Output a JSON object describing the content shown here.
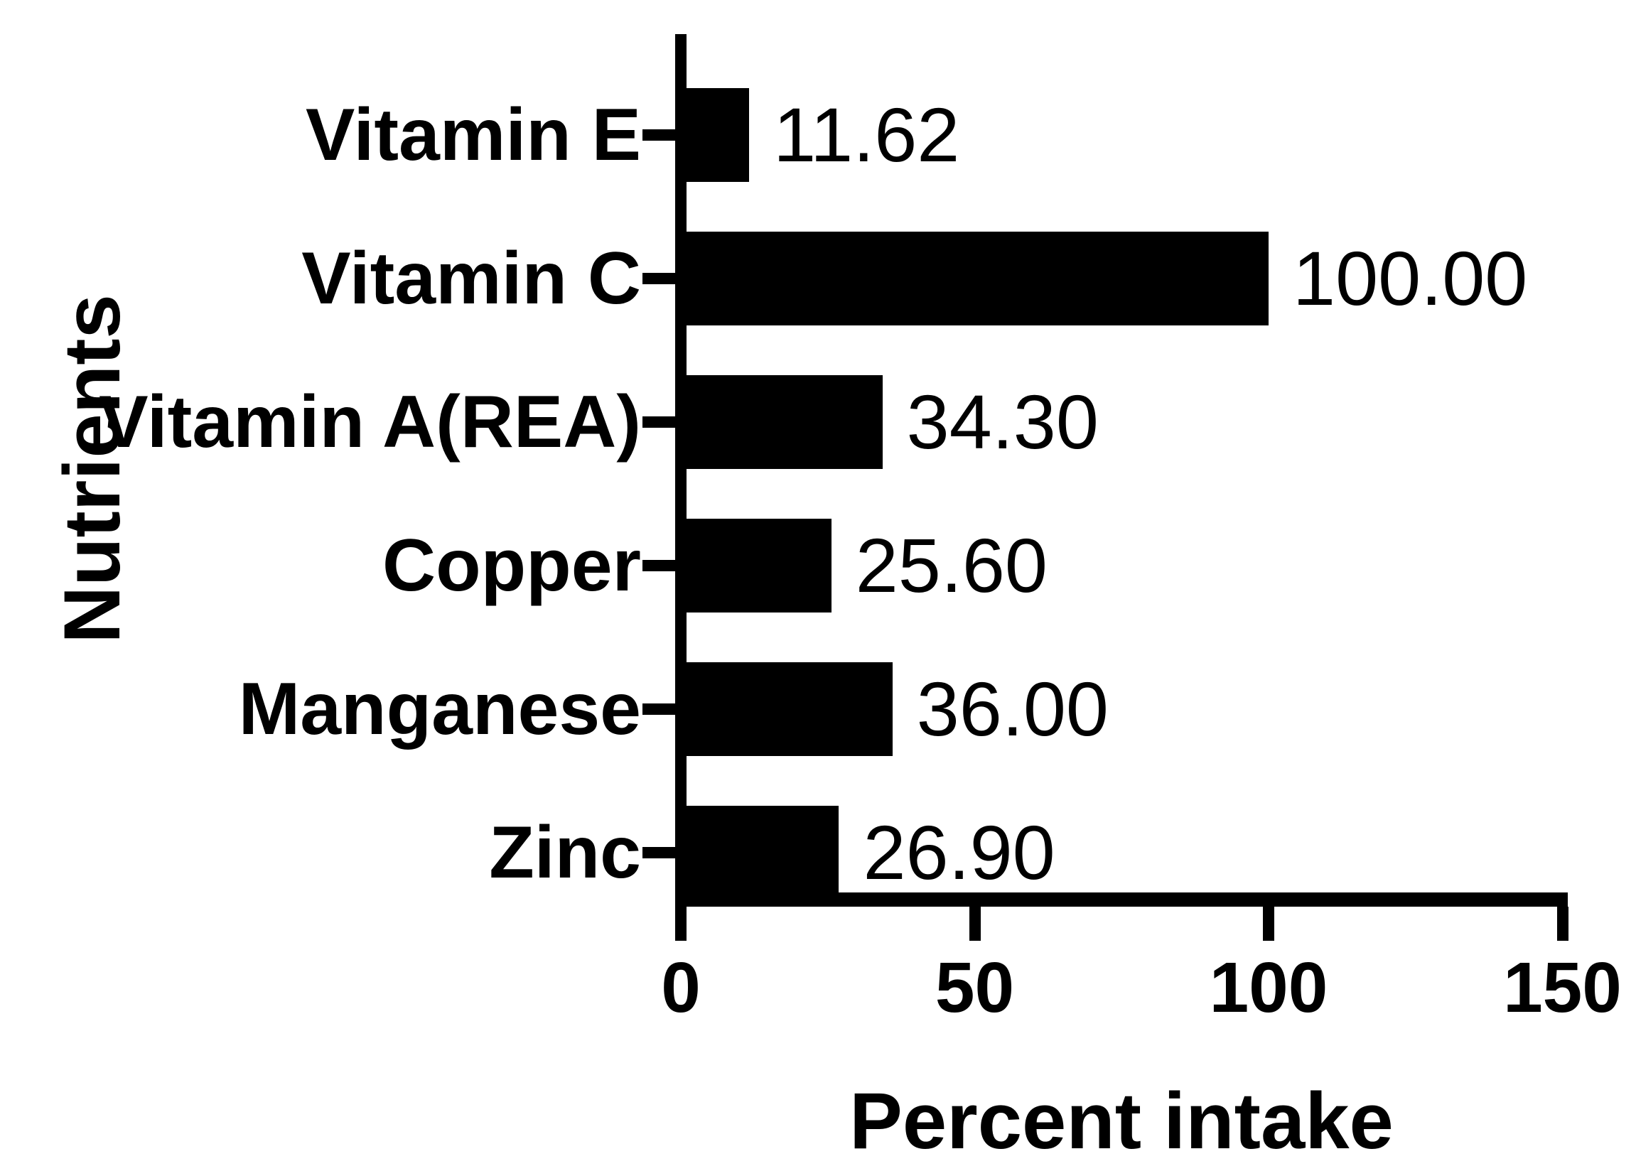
{
  "figure": {
    "x_axis_title": "Percent intake",
    "y_axis_title": "Nutrients"
  },
  "chart_data": {
    "type": "bar",
    "orientation": "horizontal",
    "title": "",
    "xlabel": "Percent intake",
    "ylabel": "Nutrients",
    "categories": [
      "Vitamin E",
      "Vitamin C",
      "Vitamin A(REA)",
      "Copper",
      "Manganese",
      "Zinc"
    ],
    "values": [
      11.62,
      100.0,
      34.3,
      25.6,
      36.0,
      26.9
    ],
    "value_labels": [
      "11.62",
      "100.00",
      "34.30",
      "25.60",
      "36.00",
      "26.90"
    ],
    "x_ticks": [
      0,
      50,
      100,
      150
    ],
    "x_tick_labels": [
      "0",
      "50",
      "100",
      "150"
    ],
    "xlim": [
      0,
      150
    ],
    "bar_color": "#000000",
    "text_color": "#000000",
    "background_color": "#ffffff",
    "grid": false,
    "legend": false,
    "value_label_position": "right-of-bar"
  }
}
